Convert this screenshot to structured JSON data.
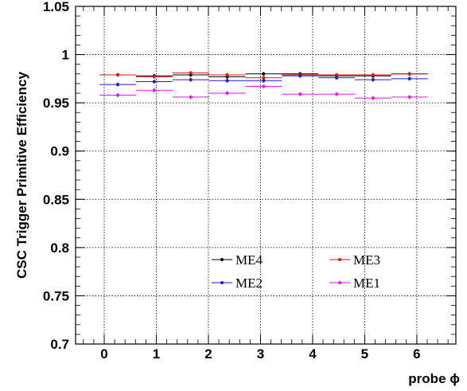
{
  "chart_data": {
    "type": "scatter",
    "xlabel": "probe ϕ",
    "ylabel": "CSC Trigger Primitive Efficiency",
    "xlim": [
      -0.55,
      6.75
    ],
    "ylim": [
      0.7,
      1.05
    ],
    "x_ticks": [
      "0",
      "1",
      "2",
      "3",
      "4",
      "5",
      "6"
    ],
    "y_ticks": [
      "0.7",
      "0.75",
      "0.8",
      "0.85",
      "0.9",
      "0.95",
      "1",
      "1.05"
    ],
    "grid": true,
    "legend_position": "bottom-center",
    "series": [
      {
        "name": "ME4",
        "color": "#000000",
        "x": [
          0.26,
          0.96,
          1.66,
          2.36,
          3.06,
          3.76,
          4.46,
          5.16,
          5.86
        ],
        "xerr": 0.35,
        "y": [
          0.979,
          0.978,
          0.979,
          0.977,
          0.98,
          0.98,
          0.978,
          0.978,
          0.98
        ]
      },
      {
        "name": "ME3",
        "color": "#e8180c",
        "x": [
          0.26,
          0.96,
          1.66,
          2.36,
          3.06,
          3.76,
          4.46,
          5.16,
          5.86
        ],
        "xerr": 0.35,
        "y": [
          0.979,
          0.977,
          0.981,
          0.979,
          0.976,
          0.979,
          0.979,
          0.979,
          0.98
        ]
      },
      {
        "name": "ME2",
        "color": "#1a1ae6",
        "x": [
          0.26,
          0.96,
          1.66,
          2.36,
          3.06,
          3.76,
          4.46,
          5.16,
          5.86
        ],
        "xerr": 0.35,
        "y": [
          0.969,
          0.972,
          0.974,
          0.973,
          0.973,
          0.978,
          0.976,
          0.974,
          0.975
        ]
      },
      {
        "name": "ME1",
        "color": "#f014f0",
        "x": [
          0.26,
          0.96,
          1.66,
          2.36,
          3.06,
          3.76,
          4.46,
          5.16,
          5.86
        ],
        "xerr": 0.35,
        "y": [
          0.958,
          0.963,
          0.956,
          0.96,
          0.967,
          0.959,
          0.959,
          0.955,
          0.956
        ]
      }
    ]
  }
}
